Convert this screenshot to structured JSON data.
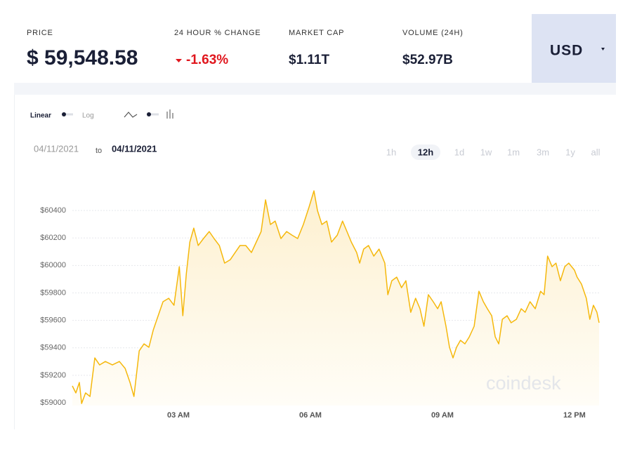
{
  "header": {
    "price_label": "PRICE",
    "price": "$ 59,548.58",
    "change_label": "24 HOUR % CHANGE",
    "change": "-1.63%",
    "market_cap_label": "MARKET CAP",
    "market_cap": "$1.11T",
    "volume_label": "VOLUME (24H)",
    "volume": "$52.97B",
    "currency": "USD"
  },
  "controls": {
    "linear": "Linear",
    "log": "Log",
    "date_from": "04/11/2021",
    "date_sep": "to",
    "date_to": "04/11/2021",
    "ranges": [
      "1h",
      "12h",
      "1d",
      "1w",
      "1m",
      "3m",
      "1y",
      "all"
    ],
    "selected_range": 1
  },
  "chart_data": {
    "type": "line",
    "watermark": "coindesk",
    "x": [
      0.59,
      0.67,
      0.75,
      0.8,
      0.89,
      0.99,
      1.1,
      1.21,
      1.34,
      1.5,
      1.66,
      1.79,
      1.9,
      1.99,
      2.11,
      2.22,
      2.33,
      2.43,
      2.54,
      2.65,
      2.78,
      2.9,
      3.02,
      3.1,
      3.18,
      3.26,
      3.35,
      3.45,
      3.57,
      3.7,
      3.81,
      3.93,
      4.05,
      4.18,
      4.29,
      4.4,
      4.53,
      4.66,
      4.77,
      4.88,
      4.98,
      5.09,
      5.2,
      5.33,
      5.46,
      5.58,
      5.71,
      5.84,
      5.97,
      6.08,
      6.16,
      6.26,
      6.37,
      6.48,
      6.61,
      6.73,
      6.83,
      6.93,
      7.05,
      7.12,
      7.21,
      7.32,
      7.44,
      7.56,
      7.69,
      7.76,
      7.85,
      7.96,
      8.07,
      8.17,
      8.28,
      8.39,
      8.49,
      8.58,
      8.68,
      8.79,
      8.89,
      8.97,
      9.08,
      9.16,
      9.24,
      9.32,
      9.41,
      9.51,
      9.61,
      9.72,
      9.83,
      9.93,
      10.02,
      10.12,
      10.2,
      10.28,
      10.36,
      10.47,
      10.56,
      10.68,
      10.79,
      10.88,
      10.99,
      11.11,
      11.23,
      11.31,
      11.39,
      11.49,
      11.58,
      11.68,
      11.78,
      11.87,
      12.0,
      12.06,
      12.16,
      12.27,
      12.35,
      12.43,
      12.51,
      12.56
    ],
    "series": [
      {
        "color": "#f5b80c",
        "values": [
          59123,
          59072,
          59148,
          58995,
          59072,
          59046,
          59327,
          59276,
          59301,
          59276,
          59301,
          59250,
          59148,
          59046,
          59378,
          59429,
          59404,
          59531,
          59634,
          59736,
          59761,
          59710,
          59991,
          59634,
          59940,
          60170,
          60272,
          60145,
          60196,
          60247,
          60196,
          60145,
          60017,
          60042,
          60094,
          60145,
          60145,
          60094,
          60170,
          60247,
          60477,
          60298,
          60323,
          60196,
          60247,
          60221,
          60196,
          60298,
          60426,
          60543,
          60400,
          60298,
          60323,
          60170,
          60221,
          60323,
          60247,
          60170,
          60094,
          60017,
          60119,
          60145,
          60068,
          60119,
          60017,
          59787,
          59889,
          59915,
          59838,
          59889,
          59659,
          59761,
          59685,
          59557,
          59787,
          59736,
          59685,
          59736,
          59557,
          59404,
          59327,
          59404,
          59455,
          59429,
          59480,
          59557,
          59812,
          59736,
          59685,
          59634,
          59480,
          59429,
          59608,
          59634,
          59583,
          59608,
          59685,
          59659,
          59736,
          59685,
          59812,
          59787,
          60068,
          59991,
          60017,
          59889,
          59991,
          60017,
          59966,
          59915,
          59864,
          59761,
          59608,
          59710,
          59659,
          59583
        ]
      }
    ],
    "xlim": [
      0.59,
      12.56
    ],
    "xticks": [
      {
        "value": 3,
        "label": "03 AM"
      },
      {
        "value": 6,
        "label": "06 AM"
      },
      {
        "value": 9,
        "label": "09 AM"
      },
      {
        "value": 12,
        "label": "12 PM"
      }
    ],
    "ylim": [
      58980,
      60560
    ],
    "yticks": [
      {
        "value": 59000,
        "label": "$59000"
      },
      {
        "value": 59200,
        "label": "$59200"
      },
      {
        "value": 59400,
        "label": "$59400"
      },
      {
        "value": 59600,
        "label": "$59600"
      },
      {
        "value": 59800,
        "label": "$59800"
      },
      {
        "value": 60000,
        "label": "$60000"
      },
      {
        "value": 60200,
        "label": "$60200"
      },
      {
        "value": 60400,
        "label": "$60400"
      }
    ],
    "grid": true,
    "area": true
  }
}
